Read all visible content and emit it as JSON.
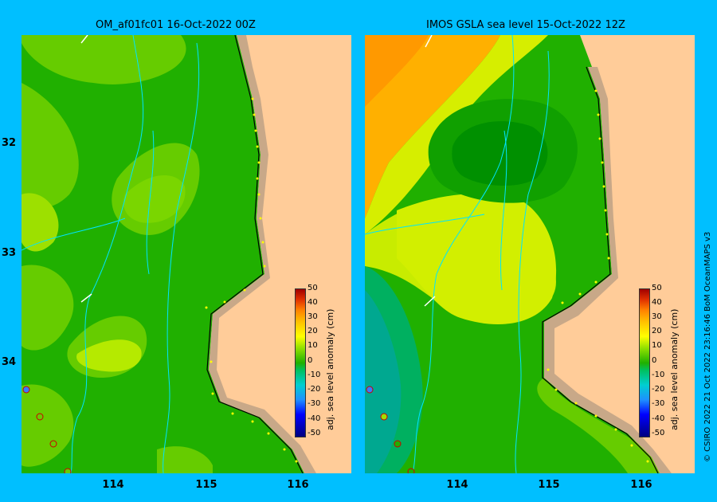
{
  "panels": [
    {
      "title": "OM_af01fc01 16-Oct-2022 00Z"
    },
    {
      "title": "IMOS GSLA sea level  15-Oct-2022 12Z"
    }
  ],
  "axes": {
    "lat_labels": [
      "32",
      "33",
      "34"
    ],
    "lon_labels": [
      "114",
      "115",
      "116"
    ]
  },
  "colorbar": {
    "label": "adj. sea level anomaly (cm)",
    "ticks": [
      "50",
      "40",
      "30",
      "20",
      "10",
      "0",
      "-10",
      "-20",
      "-30",
      "-40",
      "-50"
    ],
    "colors": [
      "#000080",
      "#0000ff",
      "#1e90ff",
      "#00ced1",
      "#00c060",
      "#20b000",
      "#90e000",
      "#ffff00",
      "#ffc000",
      "#ff8000",
      "#a00000"
    ]
  },
  "credit": "© CSIRO 2022   21 Oct 2022 23:16:46 BoM OceanMAPS v3"
}
